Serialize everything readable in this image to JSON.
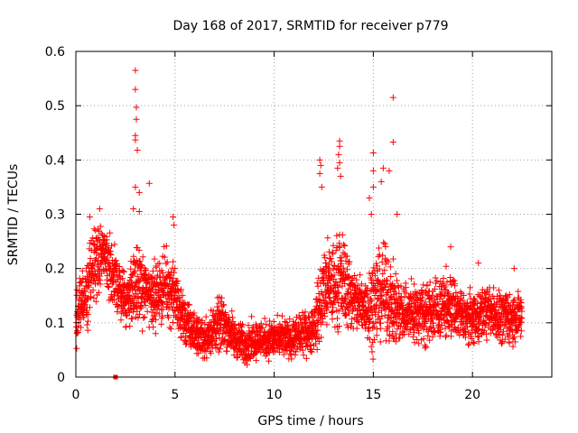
{
  "chart_data": {
    "type": "scatter",
    "title": "Day 168 of 2017, SRMTID for receiver p779",
    "xlabel": "GPS time / hours",
    "ylabel": "SRMTID / TECUs",
    "xlim": [
      0,
      24
    ],
    "ylim": [
      0,
      0.6
    ],
    "xticks": [
      0,
      5,
      10,
      15,
      20
    ],
    "yticks": [
      0,
      0.1,
      0.2,
      0.3,
      0.4,
      0.5,
      0.6
    ],
    "xtick_labels": [
      "0",
      "5",
      "10",
      "15",
      "20"
    ],
    "ytick_labels": [
      "0",
      "0.1",
      "0.2",
      "0.3",
      "0.4",
      "0.5",
      "0.6"
    ],
    "grid": true,
    "marker": "plus",
    "color": "#ff0000",
    "series": [
      {
        "name": "SRMTID",
        "density_profile": {
          "x": [
            0,
            0.5,
            1,
            1.5,
            2,
            2.5,
            3,
            3.5,
            4,
            4.5,
            5,
            5.5,
            6,
            6.5,
            7,
            7.5,
            8,
            8.5,
            9,
            9.5,
            10,
            10.5,
            11,
            11.5,
            12,
            12.5,
            13,
            13.5,
            14,
            14.5,
            15,
            15.5,
            16,
            16.5,
            17,
            17.5,
            18,
            18.5,
            19,
            19.5,
            20,
            20.5,
            21,
            21.5,
            22,
            22.5
          ],
          "median": [
            0.12,
            0.15,
            0.22,
            0.22,
            0.18,
            0.14,
            0.17,
            0.16,
            0.15,
            0.17,
            0.15,
            0.1,
            0.08,
            0.07,
            0.09,
            0.1,
            0.07,
            0.06,
            0.07,
            0.07,
            0.07,
            0.07,
            0.07,
            0.08,
            0.09,
            0.16,
            0.17,
            0.18,
            0.14,
            0.13,
            0.14,
            0.16,
            0.13,
            0.12,
            0.12,
            0.12,
            0.12,
            0.13,
            0.13,
            0.11,
            0.11,
            0.12,
            0.12,
            0.11,
            0.11,
            0.11
          ],
          "spread": [
            0.05,
            0.05,
            0.06,
            0.05,
            0.05,
            0.04,
            0.06,
            0.05,
            0.05,
            0.05,
            0.05,
            0.04,
            0.03,
            0.03,
            0.04,
            0.04,
            0.03,
            0.03,
            0.03,
            0.03,
            0.03,
            0.03,
            0.03,
            0.03,
            0.04,
            0.07,
            0.07,
            0.07,
            0.05,
            0.05,
            0.07,
            0.07,
            0.06,
            0.05,
            0.05,
            0.05,
            0.05,
            0.05,
            0.05,
            0.04,
            0.04,
            0.04,
            0.04,
            0.04,
            0.04,
            0.04
          ]
        },
        "notable_points": [
          {
            "x": 3.0,
            "y": 0.565
          },
          {
            "x": 3.0,
            "y": 0.53
          },
          {
            "x": 3.05,
            "y": 0.497
          },
          {
            "x": 3.05,
            "y": 0.475
          },
          {
            "x": 3.0,
            "y": 0.445
          },
          {
            "x": 3.0,
            "y": 0.437
          },
          {
            "x": 3.1,
            "y": 0.418
          },
          {
            "x": 3.0,
            "y": 0.35
          },
          {
            "x": 3.2,
            "y": 0.34
          },
          {
            "x": 3.7,
            "y": 0.357
          },
          {
            "x": 2.9,
            "y": 0.31
          },
          {
            "x": 3.2,
            "y": 0.305
          },
          {
            "x": 0.7,
            "y": 0.295
          },
          {
            "x": 1.2,
            "y": 0.31
          },
          {
            "x": 4.9,
            "y": 0.295
          },
          {
            "x": 4.95,
            "y": 0.28
          },
          {
            "x": 12.3,
            "y": 0.4
          },
          {
            "x": 12.35,
            "y": 0.39
          },
          {
            "x": 12.3,
            "y": 0.375
          },
          {
            "x": 12.4,
            "y": 0.35
          },
          {
            "x": 13.3,
            "y": 0.435
          },
          {
            "x": 13.3,
            "y": 0.425
          },
          {
            "x": 13.25,
            "y": 0.41
          },
          {
            "x": 13.3,
            "y": 0.395
          },
          {
            "x": 13.2,
            "y": 0.385
          },
          {
            "x": 13.35,
            "y": 0.37
          },
          {
            "x": 15.0,
            "y": 0.413
          },
          {
            "x": 15.0,
            "y": 0.38
          },
          {
            "x": 15.5,
            "y": 0.385
          },
          {
            "x": 15.4,
            "y": 0.36
          },
          {
            "x": 15.0,
            "y": 0.35
          },
          {
            "x": 15.8,
            "y": 0.38
          },
          {
            "x": 16.0,
            "y": 0.515
          },
          {
            "x": 16.0,
            "y": 0.433
          },
          {
            "x": 14.8,
            "y": 0.33
          },
          {
            "x": 14.9,
            "y": 0.3
          },
          {
            "x": 16.2,
            "y": 0.3
          },
          {
            "x": 18.9,
            "y": 0.24
          },
          {
            "x": 20.3,
            "y": 0.21
          },
          {
            "x": 22.1,
            "y": 0.2
          },
          {
            "x": 2.0,
            "y": 0.0
          }
        ]
      }
    ]
  }
}
